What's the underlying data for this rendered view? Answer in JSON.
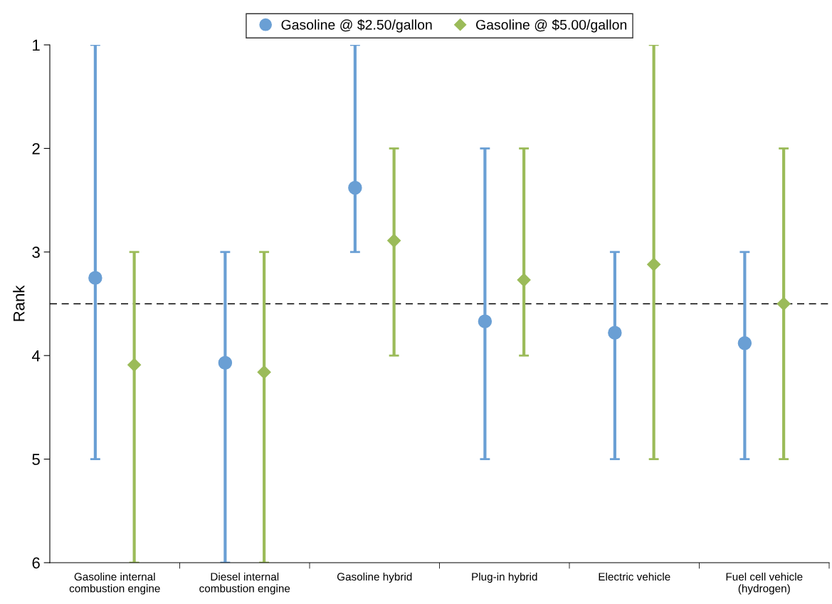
{
  "chart_data": {
    "type": "scatter",
    "ylabel": "Rank",
    "categories": [
      "Gasoline internal\ncombustion engine",
      "Diesel internal\ncombustion engine",
      "Gasoline hybrid",
      "Plug-in hybrid",
      "Electric vehicle",
      "Fuel cell vehicle\n(hydrogen)"
    ],
    "series": [
      {
        "name": "Gasoline @ $2.50/gallon",
        "color": "#6a9fd4",
        "marker": "circle",
        "values": [
          3.25,
          4.07,
          2.38,
          3.67,
          3.78,
          3.88
        ],
        "errors": [
          [
            1,
            5
          ],
          [
            3,
            6
          ],
          [
            1,
            3
          ],
          [
            2,
            5
          ],
          [
            3,
            5
          ],
          [
            3,
            5
          ]
        ]
      },
      {
        "name": "Gasoline @ $5.00/gallon",
        "color": "#9bbb59",
        "marker": "diamond",
        "values": [
          4.09,
          4.16,
          2.89,
          3.27,
          3.12,
          3.5
        ],
        "errors": [
          [
            3,
            6
          ],
          [
            3,
            6
          ],
          [
            2,
            4
          ],
          [
            2,
            4
          ],
          [
            1,
            5
          ],
          [
            2,
            5
          ]
        ]
      }
    ],
    "ylim": [
      6,
      1
    ],
    "yticks": [
      1,
      2,
      3,
      4,
      5,
      6
    ],
    "grid": false,
    "legend": "top",
    "ref_lines": [
      {
        "axis": "y",
        "value": 3.5,
        "color": "#000000",
        "line_style": "dashed"
      }
    ]
  }
}
